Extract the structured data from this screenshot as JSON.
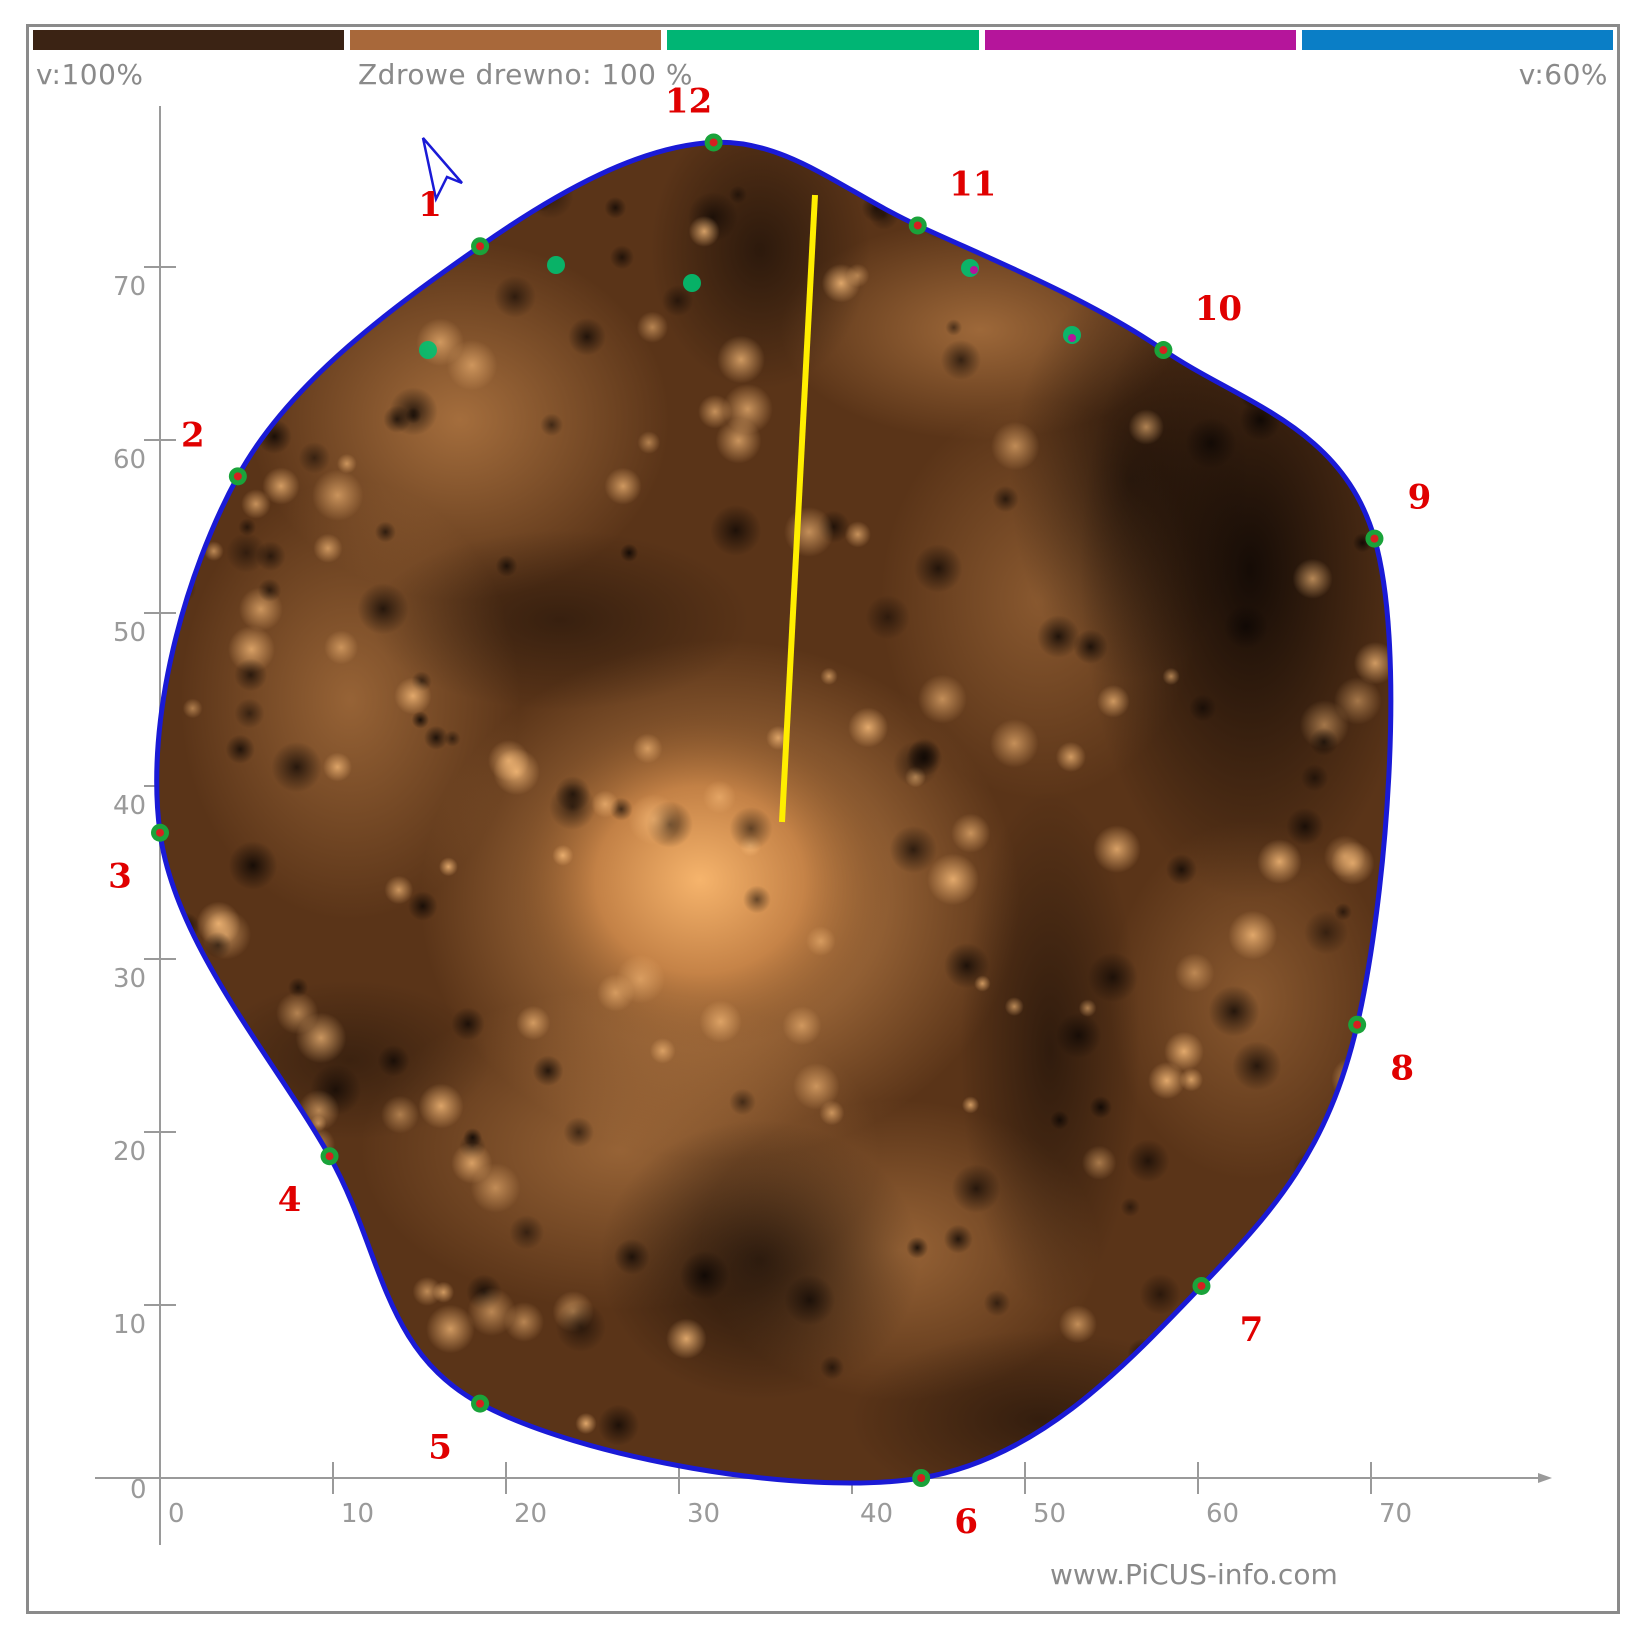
{
  "header": {
    "left_label": "v:100%",
    "center_label": "Zdrowe drewno: 100 %",
    "right_label": "v:60%"
  },
  "scale_colors": [
    "#3b2314",
    "#a8683a",
    "#00b574",
    "#b5159b",
    "#0a7ec6"
  ],
  "footer": {
    "website": "www.PiCUS-info.com"
  },
  "axes": {
    "x_ticks": [
      "0",
      "10",
      "20",
      "30",
      "40",
      "50",
      "60",
      "70"
    ],
    "y_ticks": [
      "0",
      "10",
      "20",
      "30",
      "40",
      "50",
      "60",
      "70"
    ]
  },
  "sensors": [
    {
      "label": "1",
      "x": 18.5,
      "y": 71.2
    },
    {
      "label": "2",
      "x": 4.5,
      "y": 57.9
    },
    {
      "label": "3",
      "x": 0.0,
      "y": 37.3
    },
    {
      "label": "4",
      "x": 9.8,
      "y": 18.6
    },
    {
      "label": "5",
      "x": 18.5,
      "y": 4.3
    },
    {
      "label": "6",
      "x": 44.0,
      "y": 0.0
    },
    {
      "label": "7",
      "x": 60.2,
      "y": 11.1
    },
    {
      "label": "8",
      "x": 69.2,
      "y": 26.2
    },
    {
      "label": "9",
      "x": 70.2,
      "y": 54.3
    },
    {
      "label": "10",
      "x": 58.0,
      "y": 65.2
    },
    {
      "label": "11",
      "x": 43.8,
      "y": 72.4
    },
    {
      "label": "12",
      "x": 32.0,
      "y": 77.2
    }
  ],
  "colors": {
    "outline": "#1a1ad6",
    "marker_line": "#ffee00",
    "sensor_dot": "#1aa33a",
    "sensor_center": "#d62020",
    "sensor_label": "#e00000",
    "axis": "#9a9a9a"
  }
}
